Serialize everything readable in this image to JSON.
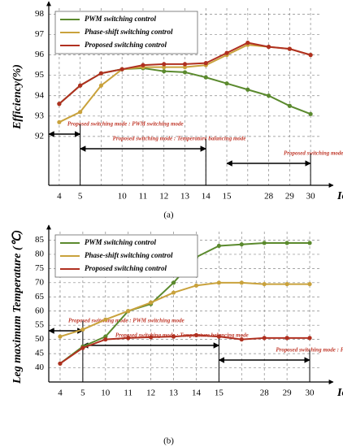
{
  "chart_data": [
    {
      "type": "line",
      "y_label": "Efficiency(%)",
      "x_label": "Iout (A)",
      "caption": "(a)",
      "categories": [
        "4",
        "5",
        null,
        "10",
        "11",
        "12",
        "13",
        "14",
        "15",
        null,
        "28",
        "29",
        "30"
      ],
      "series": [
        {
          "name": "PWM switching control",
          "color": "#5b8a2e",
          "values": [
            93.6,
            94.5,
            95.1,
            95.3,
            95.35,
            95.2,
            95.15,
            94.9,
            94.6,
            94.3,
            94.0,
            93.5,
            93.1
          ]
        },
        {
          "name": "Phase-shift switching control",
          "color": "#c9a23c",
          "values": [
            92.7,
            93.2,
            94.5,
            95.3,
            95.4,
            95.4,
            95.4,
            95.5,
            96.0,
            96.5,
            96.4,
            96.3,
            96.0
          ]
        },
        {
          "name": "Proposed switching control",
          "color": "#b03020",
          "values": [
            93.6,
            94.5,
            95.1,
            95.3,
            95.5,
            95.55,
            95.55,
            95.6,
            96.1,
            96.6,
            96.4,
            96.3,
            96.0
          ]
        }
      ],
      "ylim": [
        89.6,
        98.3
      ],
      "yticks": [
        92,
        93,
        94,
        95,
        96,
        97,
        98
      ],
      "grid": true,
      "legend": "upper left",
      "annotations": [
        "Proposed switching mode : PWM switching mode",
        "Proposed switching mode : Temperature balancing mode",
        "Proposed switching mode : Phase-shift mode"
      ]
    },
    {
      "type": "line",
      "y_label": "Leg maximum Temperature (℃)",
      "x_label": "Iout (A)",
      "caption": "(b)",
      "categories": [
        "4",
        "5",
        "10",
        "11",
        "12",
        "13",
        "14",
        "15",
        null,
        "28",
        "29",
        "30"
      ],
      "series": [
        {
          "name": "PWM switching control",
          "color": "#5b8a2e",
          "values": [
            41.5,
            47.5,
            51,
            60,
            62.5,
            70,
            79,
            83,
            83.5,
            84,
            84,
            84
          ]
        },
        {
          "name": "Phase-shift switching control",
          "color": "#c9a23c",
          "values": [
            51,
            53.5,
            57,
            60,
            63,
            66.5,
            69,
            70,
            70,
            69.5,
            69.5,
            69.5
          ]
        },
        {
          "name": "Proposed switching control",
          "color": "#b03020",
          "values": [
            41.5,
            47,
            50,
            50.5,
            50.8,
            51,
            51.5,
            51,
            50,
            50.5,
            50.5,
            50.5
          ]
        }
      ],
      "ylim": [
        35,
        88
      ],
      "yticks": [
        40,
        45,
        50,
        55,
        60,
        65,
        70,
        75,
        80,
        85
      ],
      "grid": true,
      "legend": "upper left",
      "annotations": [
        "Proposed switching mode : PWM switching mode",
        "Proposed switching mode : Temperature balancing mode",
        "Proposed switching mode : Phase-shift mode"
      ]
    }
  ]
}
